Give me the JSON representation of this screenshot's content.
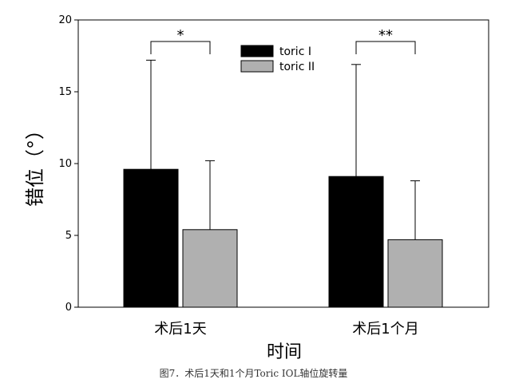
{
  "chart_data": {
    "type": "bar",
    "categories": [
      "术后1天",
      "术后1个月"
    ],
    "series": [
      {
        "name": "toric I",
        "values": [
          9.6,
          9.1
        ],
        "errors": [
          7.6,
          7.8
        ],
        "color": "#000000"
      },
      {
        "name": "toric II",
        "values": [
          5.4,
          4.7
        ],
        "errors": [
          4.8,
          4.1
        ],
        "color": "#b0b0b0"
      }
    ],
    "significance": [
      "*",
      "**"
    ],
    "xlabel": "时间",
    "ylabel": "错位（°）",
    "ylim": [
      0,
      20
    ],
    "yticks": [
      0,
      5,
      10,
      15,
      20
    ],
    "legend": "top-center",
    "grid": false
  },
  "caption": "图7．术后1天和1个月Toric IOL轴位旋转量"
}
